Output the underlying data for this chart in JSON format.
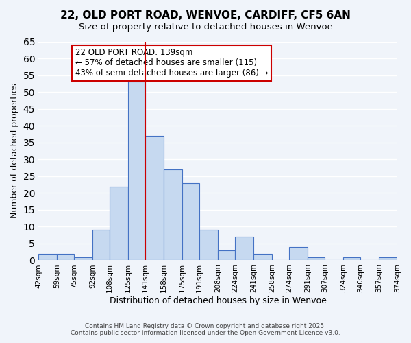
{
  "title": "22, OLD PORT ROAD, WENVOE, CARDIFF, CF5 6AN",
  "subtitle": "Size of property relative to detached houses in Wenvoe",
  "xlabel": "Distribution of detached houses by size in Wenvoe",
  "ylabel": "Number of detached properties",
  "bin_edges": [
    42,
    59,
    75,
    92,
    108,
    125,
    141,
    158,
    175,
    191,
    208,
    224,
    241,
    258,
    274,
    291,
    307,
    324,
    340,
    357,
    374
  ],
  "bin_labels": [
    "42sqm",
    "59sqm",
    "75sqm",
    "92sqm",
    "108sqm",
    "125sqm",
    "141sqm",
    "158sqm",
    "175sqm",
    "191sqm",
    "208sqm",
    "224sqm",
    "241sqm",
    "258sqm",
    "274sqm",
    "291sqm",
    "307sqm",
    "324sqm",
    "340sqm",
    "357sqm",
    "374sqm"
  ],
  "counts": [
    2,
    2,
    1,
    9,
    22,
    53,
    37,
    27,
    23,
    9,
    3,
    7,
    2,
    0,
    4,
    1,
    0,
    1,
    0,
    1
  ],
  "bar_color": "#c6d9f0",
  "bar_edge_color": "#4472c4",
  "vline_x": 141,
  "vline_color": "#cc0000",
  "ylim": [
    0,
    65
  ],
  "yticks": [
    0,
    5,
    10,
    15,
    20,
    25,
    30,
    35,
    40,
    45,
    50,
    55,
    60,
    65
  ],
  "annotation_text": "22 OLD PORT ROAD: 139sqm\n← 57% of detached houses are smaller (115)\n43% of semi-detached houses are larger (86) →",
  "annotation_box_edge": "#cc0000",
  "footer_line1": "Contains HM Land Registry data © Crown copyright and database right 2025.",
  "footer_line2": "Contains public sector information licensed under the Open Government Licence v3.0.",
  "bg_color": "#f0f4fa",
  "grid_color": "#ffffff"
}
